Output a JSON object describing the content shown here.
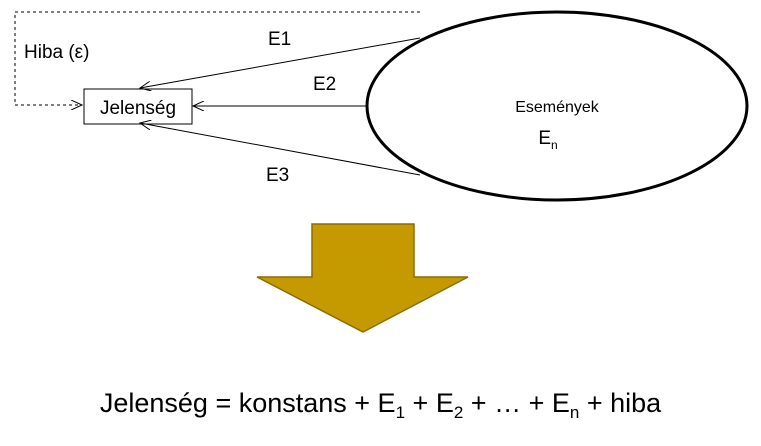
{
  "diagram": {
    "error_label": "Hiba (ε)",
    "phenomenon_label": "Jelenség",
    "events_title": "Események",
    "events_symbol": "E",
    "events_subscript": "n",
    "arrows": [
      {
        "label": "E1"
      },
      {
        "label": "E2"
      },
      {
        "label": "E3"
      }
    ],
    "arrow_fill": "#c49a00",
    "arrow_stroke": "#8a6d00"
  },
  "formula": {
    "lhs": "Jelenség",
    "eq": " = konstans + ",
    "e": "E",
    "sub1": "1",
    "plus": " + ",
    "sub2": "2",
    "mid": " + … + ",
    "subn": "n",
    "tail": " + hiba"
  }
}
